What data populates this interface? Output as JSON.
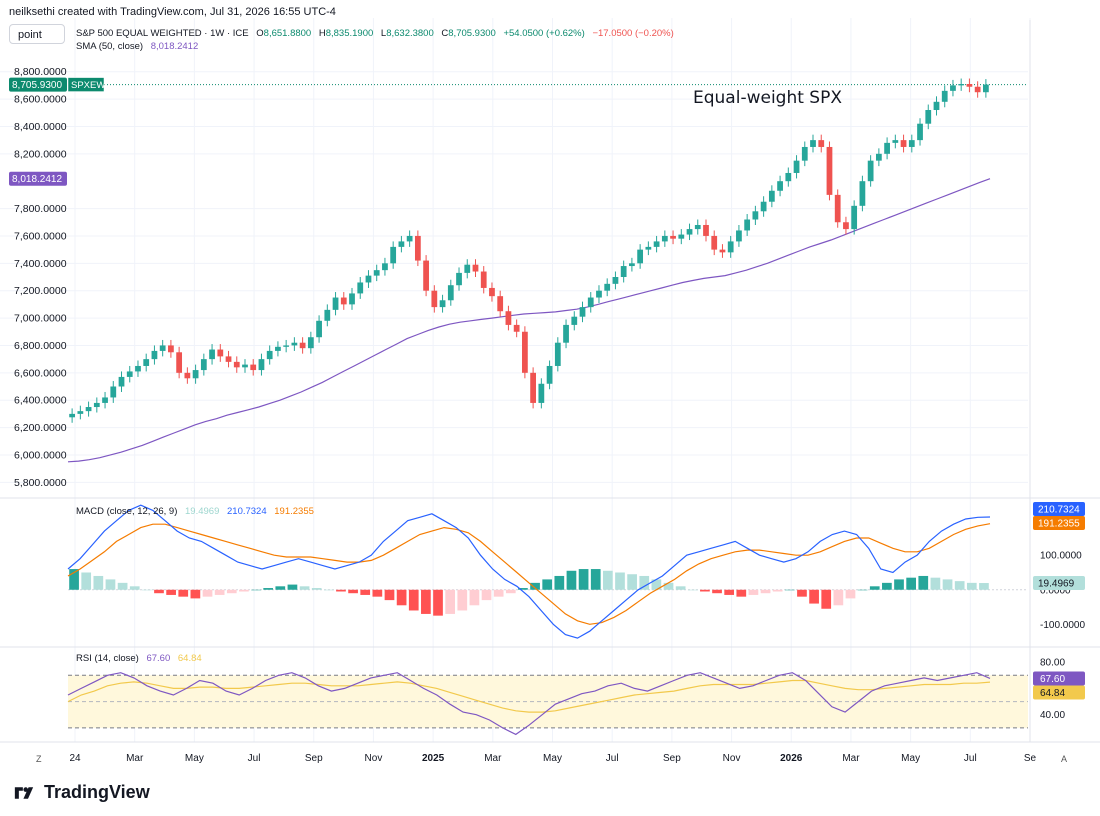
{
  "header": {
    "credit": "neilksethi created with TradingView.com, Jul 31, 2026 16:55 UTC-4"
  },
  "symbol_button": "point",
  "main_legend": {
    "title": "S&P 500 EQUAL WEIGHTED · 1W · ICE",
    "o_label": "O",
    "o": "8,651.8800",
    "h_label": "H",
    "h": "8,835.1900",
    "l_label": "L",
    "l": "8,632.3800",
    "c_label": "C",
    "c": "8,705.9300",
    "change": "+54.0500 (+0.62%)",
    "change2": "−17.0500 (−0.20%)"
  },
  "sma_legend": {
    "label": "SMA (50, close)",
    "value": "8,018.2412"
  },
  "macd_legend": {
    "label": "MACD (close, 12, 26, 9)",
    "hist": "19.4969",
    "macd": "210.7324",
    "signal": "191.2355"
  },
  "rsi_legend": {
    "label": "RSI (14, close)",
    "rsi": "67.60",
    "ma": "64.84"
  },
  "annotation": "Equal-weight SPX",
  "brand": "TradingView",
  "corner_left": "Z",
  "corner_right": "A",
  "colors": {
    "up": "#26a69a",
    "down": "#ef5350",
    "sma": "#7e57c2",
    "macd": "#2962ff",
    "signal": "#f57c00",
    "rsi": "#7e57c2",
    "rsi_ma": "#f2c94c",
    "label_green": "#0c8a6e"
  },
  "chart_data": {
    "type": "candlestick",
    "title": "S&P 500 EQUAL WEIGHTED · 1W · ICE",
    "x_ticks": [
      "24",
      "Mar",
      "May",
      "Jul",
      "Sep",
      "Nov",
      "2025",
      "Mar",
      "May",
      "Jul",
      "Sep",
      "Nov",
      "2026",
      "Mar",
      "May",
      "Jul",
      "Se"
    ],
    "price_axis": {
      "ticks": [
        "5,800.0000",
        "6,000.0000",
        "6,200.0000",
        "6,400.0000",
        "6,600.0000",
        "6,800.0000",
        "7,000.0000",
        "7,200.0000",
        "7,400.0000",
        "7,600.0000",
        "7,800.0000",
        "8,200.0000",
        "8,400.0000",
        "8,600.0000",
        "8,800.0000"
      ],
      "tags": [
        {
          "text": "8,705.9300",
          "name": "SPXEW",
          "color": "#0c8a6e"
        },
        {
          "text": "8,018.2412",
          "color": "#7e57c2"
        }
      ],
      "ylim": [
        5700,
        8900
      ]
    },
    "candle_closes": [
      6300,
      6320,
      6350,
      6380,
      6420,
      6500,
      6570,
      6610,
      6650,
      6700,
      6760,
      6800,
      6750,
      6600,
      6560,
      6620,
      6700,
      6770,
      6720,
      6680,
      6640,
      6660,
      6620,
      6700,
      6760,
      6790,
      6800,
      6820,
      6780,
      6860,
      6980,
      7060,
      7150,
      7100,
      7180,
      7260,
      7310,
      7350,
      7400,
      7520,
      7560,
      7600,
      7420,
      7200,
      7080,
      7130,
      7240,
      7330,
      7390,
      7340,
      7220,
      7160,
      7050,
      6950,
      6900,
      6600,
      6380,
      6520,
      6650,
      6820,
      6950,
      7010,
      7080,
      7150,
      7200,
      7250,
      7300,
      7380,
      7400,
      7500,
      7520,
      7560,
      7600,
      7580,
      7610,
      7650,
      7680,
      7600,
      7500,
      7480,
      7560,
      7640,
      7720,
      7780,
      7850,
      7930,
      8000,
      8060,
      8150,
      8250,
      8300,
      8250,
      7900,
      7700,
      7650,
      7820,
      8000,
      8150,
      8200,
      8280,
      8300,
      8250,
      8300,
      8420,
      8520,
      8580,
      8660,
      8700,
      8710,
      8690,
      8650,
      8705.93
    ],
    "sma": [
      5950,
      5955,
      5965,
      5980,
      6000,
      6020,
      6045,
      6070,
      6100,
      6130,
      6160,
      6190,
      6220,
      6245,
      6265,
      6290,
      6310,
      6330,
      6350,
      6375,
      6400,
      6430,
      6460,
      6495,
      6530,
      6570,
      6610,
      6650,
      6690,
      6730,
      6770,
      6810,
      6850,
      6880,
      6910,
      6935,
      6955,
      6970,
      6980,
      6990,
      7000,
      7010,
      7020,
      7030,
      7035,
      7040,
      7045,
      7055,
      7065,
      7080,
      7100,
      7120,
      7140,
      7160,
      7180,
      7200,
      7220,
      7240,
      7260,
      7275,
      7290,
      7300,
      7310,
      7330,
      7350,
      7375,
      7400,
      7430,
      7460,
      7490,
      7520,
      7545,
      7570,
      7600,
      7630,
      7660,
      7690,
      7720,
      7750,
      7780,
      7810,
      7840,
      7870,
      7900,
      7930,
      7960,
      7990,
      8018.24
    ],
    "macd": {
      "ylim": [
        -160,
        260
      ],
      "ticks": [
        "-100.0000",
        "0.0000",
        "100.0000"
      ],
      "tags": [
        {
          "text": "210.7324",
          "color": "#2962ff"
        },
        {
          "text": "191.2355",
          "color": "#f57c00"
        },
        {
          "text": "19.4969",
          "color": "#b2dfdb"
        }
      ],
      "macd_line": [
        60,
        90,
        130,
        170,
        200,
        230,
        245,
        230,
        200,
        170,
        150,
        140,
        120,
        100,
        80,
        70,
        60,
        70,
        80,
        90,
        80,
        70,
        60,
        70,
        80,
        100,
        140,
        170,
        200,
        210,
        220,
        200,
        180,
        150,
        100,
        60,
        30,
        10,
        -20,
        -60,
        -100,
        -130,
        -140,
        -120,
        -90,
        -60,
        -30,
        0,
        20,
        40,
        70,
        100,
        110,
        120,
        130,
        140,
        120,
        100,
        90,
        80,
        90,
        110,
        140,
        160,
        170,
        160,
        120,
        60,
        50,
        80,
        100,
        140,
        170,
        190,
        205,
        210,
        210.73
      ],
      "signal_line": [
        40,
        60,
        85,
        110,
        140,
        160,
        180,
        190,
        190,
        180,
        170,
        160,
        150,
        140,
        130,
        120,
        110,
        100,
        95,
        95,
        95,
        90,
        85,
        80,
        80,
        85,
        100,
        120,
        140,
        160,
        170,
        180,
        175,
        165,
        140,
        110,
        80,
        50,
        20,
        -10,
        -40,
        -70,
        -90,
        -100,
        -95,
        -80,
        -60,
        -35,
        -10,
        10,
        30,
        55,
        75,
        90,
        100,
        110,
        115,
        115,
        110,
        105,
        100,
        100,
        110,
        125,
        140,
        150,
        150,
        135,
        120,
        110,
        110,
        120,
        140,
        160,
        175,
        185,
        191.24
      ],
      "histogram": [
        60,
        50,
        40,
        30,
        20,
        10,
        0,
        -10,
        -15,
        -20,
        -25,
        -20,
        -15,
        -10,
        -5,
        0,
        5,
        10,
        15,
        10,
        5,
        0,
        -5,
        -10,
        -15,
        -20,
        -30,
        -45,
        -60,
        -70,
        -75,
        -70,
        -60,
        -45,
        -30,
        -20,
        -10,
        5,
        20,
        30,
        40,
        55,
        60,
        60,
        55,
        50,
        45,
        40,
        30,
        20,
        10,
        0,
        -5,
        -10,
        -15,
        -20,
        -15,
        -10,
        -5,
        0,
        -20,
        -40,
        -55,
        -45,
        -25,
        0,
        10,
        20,
        30,
        35,
        40,
        35,
        30,
        25,
        20,
        19.5
      ]
    },
    "rsi": {
      "ylim": [
        20,
        90
      ],
      "ticks": [
        "40.00",
        "80.00"
      ],
      "tags": [
        {
          "text": "67.60",
          "color": "#7e57c2"
        },
        {
          "text": "64.84",
          "color": "#f2c94c"
        }
      ],
      "bands": [
        70,
        30
      ],
      "rsi_line": [
        55,
        60,
        65,
        70,
        72,
        68,
        62,
        58,
        55,
        60,
        66,
        64,
        58,
        55,
        60,
        66,
        70,
        72,
        68,
        62,
        58,
        60,
        64,
        68,
        70,
        72,
        66,
        60,
        55,
        48,
        42,
        40,
        36,
        30,
        25,
        32,
        40,
        48,
        52,
        56,
        58,
        62,
        64,
        60,
        58,
        62,
        66,
        70,
        72,
        68,
        64,
        60,
        62,
        66,
        70,
        72,
        66,
        56,
        46,
        42,
        50,
        58,
        62,
        64,
        66,
        68,
        66,
        68,
        70,
        72,
        67.6
      ],
      "ma_line": [
        50,
        55,
        58,
        62,
        64,
        65,
        64,
        62,
        60,
        60,
        61,
        61,
        60,
        60,
        61,
        62,
        63,
        64,
        64,
        63,
        62,
        62,
        62,
        63,
        64,
        65,
        64,
        62,
        60,
        57,
        54,
        51,
        48,
        45,
        43,
        42,
        42,
        43,
        45,
        47,
        49,
        51,
        53,
        55,
        56,
        57,
        58,
        60,
        62,
        63,
        63,
        63,
        63,
        64,
        65,
        66,
        66,
        64,
        62,
        60,
        59,
        59,
        60,
        61,
        62,
        63,
        63,
        63,
        64,
        64,
        64.84
      ]
    }
  }
}
